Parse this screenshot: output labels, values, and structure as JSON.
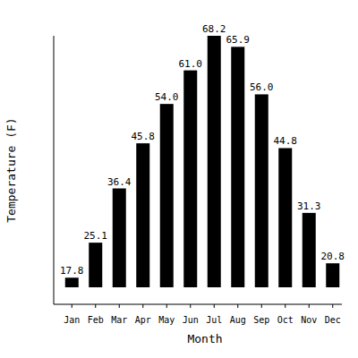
{
  "chart_data": {
    "type": "bar",
    "x_label": "Month",
    "y_label": "Temperature (F)",
    "categories": [
      "Jan",
      "Feb",
      "Mar",
      "Apr",
      "May",
      "Jun",
      "Jul",
      "Aug",
      "Sep",
      "Oct",
      "Nov",
      "Dec"
    ],
    "values": [
      17.8,
      25.1,
      36.4,
      45.8,
      54.0,
      61.0,
      68.2,
      65.9,
      56.0,
      44.8,
      31.3,
      20.8
    ],
    "color": "#000000",
    "ylim": [
      15.8,
      68.2
    ],
    "yticks": [],
    "grid": false,
    "data_labels": true,
    "tick_labels": "x"
  }
}
